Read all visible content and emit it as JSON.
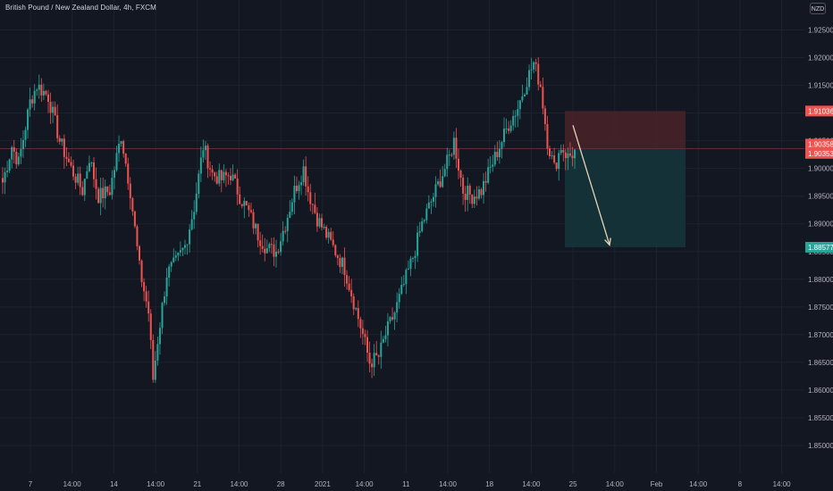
{
  "header": {
    "title": "British Pound / New Zealand Dollar, 4h, FXCM",
    "currency": "NZD"
  },
  "colors": {
    "background": "#131722",
    "up": "#26a69a",
    "down": "#ef5350",
    "grid": "#1e222d",
    "axis_text": "#b2b5be",
    "stop_zone": "#4a2328",
    "target_zone": "#143438",
    "current_price_line": "#5a3035",
    "arrow": "#e8d3b5"
  },
  "chart_data": {
    "type": "candlestick",
    "y_axis": {
      "ylim": [
        1.845,
        1.9275
      ],
      "ticks": [
        "1.92500",
        "1.92000",
        "1.91500",
        "1.91000",
        "1.90500",
        "1.90000",
        "1.89500",
        "1.89000",
        "1.88500",
        "1.88000",
        "1.87500",
        "1.87000",
        "1.86500",
        "1.86000",
        "1.85500",
        "1.85000"
      ]
    },
    "x_axis": {
      "ticks": [
        "7",
        "14:00",
        "14",
        "14:00",
        "21",
        "14:00",
        "28",
        "2021",
        "14:00",
        "11",
        "14:00",
        "18",
        "14:00",
        "25",
        "14:00",
        "Feb",
        "14:00",
        "8",
        "14:00"
      ]
    },
    "price_tags": [
      {
        "label": "1.91036",
        "value": 1.91036,
        "kind": "stop"
      },
      {
        "label": "1.90358",
        "value": 1.90358,
        "kind": "current"
      },
      {
        "label": "1.90353",
        "value": 1.90353,
        "kind": "entry"
      },
      {
        "label": "1.88577",
        "value": 1.88577,
        "kind": "target"
      }
    ],
    "position_tool": {
      "type": "short",
      "entry": 1.90353,
      "stop": 1.91036,
      "target": 1.88577
    },
    "path": [
      {
        "i": 0,
        "c": 1.8975
      },
      {
        "i": 4,
        "c": 1.904
      },
      {
        "i": 7,
        "c": 1.901
      },
      {
        "i": 12,
        "c": 1.912
      },
      {
        "i": 15,
        "c": 1.915
      },
      {
        "i": 20,
        "c": 1.913
      },
      {
        "i": 25,
        "c": 1.905
      },
      {
        "i": 30,
        "c": 1.9
      },
      {
        "i": 35,
        "c": 1.896
      },
      {
        "i": 38,
        "c": 1.902
      },
      {
        "i": 42,
        "c": 1.895
      },
      {
        "i": 47,
        "c": 1.896
      },
      {
        "i": 52,
        "c": 1.906
      },
      {
        "i": 56,
        "c": 1.896
      },
      {
        "i": 60,
        "c": 1.882
      },
      {
        "i": 64,
        "c": 1.874
      },
      {
        "i": 66,
        "c": 1.862
      },
      {
        "i": 68,
        "c": 1.869
      },
      {
        "i": 72,
        "c": 1.881
      },
      {
        "i": 76,
        "c": 1.883
      },
      {
        "i": 80,
        "c": 1.886
      },
      {
        "i": 84,
        "c": 1.893
      },
      {
        "i": 88,
        "c": 1.904
      },
      {
        "i": 92,
        "c": 1.899
      },
      {
        "i": 96,
        "c": 1.898
      },
      {
        "i": 100,
        "c": 1.899
      },
      {
        "i": 104,
        "c": 1.895
      },
      {
        "i": 108,
        "c": 1.892
      },
      {
        "i": 112,
        "c": 1.888
      },
      {
        "i": 116,
        "c": 1.8855
      },
      {
        "i": 120,
        "c": 1.885
      },
      {
        "i": 124,
        "c": 1.89
      },
      {
        "i": 128,
        "c": 1.896
      },
      {
        "i": 132,
        "c": 1.9
      },
      {
        "i": 134,
        "c": 1.896
      },
      {
        "i": 138,
        "c": 1.891
      },
      {
        "i": 142,
        "c": 1.888
      },
      {
        "i": 146,
        "c": 1.885
      },
      {
        "i": 150,
        "c": 1.882
      },
      {
        "i": 154,
        "c": 1.876
      },
      {
        "i": 158,
        "c": 1.87
      },
      {
        "i": 161,
        "c": 1.865
      },
      {
        "i": 165,
        "c": 1.866
      },
      {
        "i": 168,
        "c": 1.87
      },
      {
        "i": 172,
        "c": 1.874
      },
      {
        "i": 176,
        "c": 1.879
      },
      {
        "i": 180,
        "c": 1.884
      },
      {
        "i": 184,
        "c": 1.89
      },
      {
        "i": 188,
        "c": 1.894
      },
      {
        "i": 192,
        "c": 1.898
      },
      {
        "i": 196,
        "c": 1.902
      },
      {
        "i": 198,
        "c": 1.905
      },
      {
        "i": 202,
        "c": 1.896
      },
      {
        "i": 206,
        "c": 1.895
      },
      {
        "i": 210,
        "c": 1.896
      },
      {
        "i": 214,
        "c": 1.9
      },
      {
        "i": 218,
        "c": 1.904
      },
      {
        "i": 222,
        "c": 1.908
      },
      {
        "i": 226,
        "c": 1.911
      },
      {
        "i": 230,
        "c": 1.916
      },
      {
        "i": 233,
        "c": 1.919
      },
      {
        "i": 236,
        "c": 1.915
      },
      {
        "i": 239,
        "c": 1.905
      },
      {
        "i": 242,
        "c": 1.9
      },
      {
        "i": 245,
        "c": 1.904
      },
      {
        "i": 248,
        "c": 1.902
      },
      {
        "i": 251,
        "c": 1.903
      }
    ]
  }
}
